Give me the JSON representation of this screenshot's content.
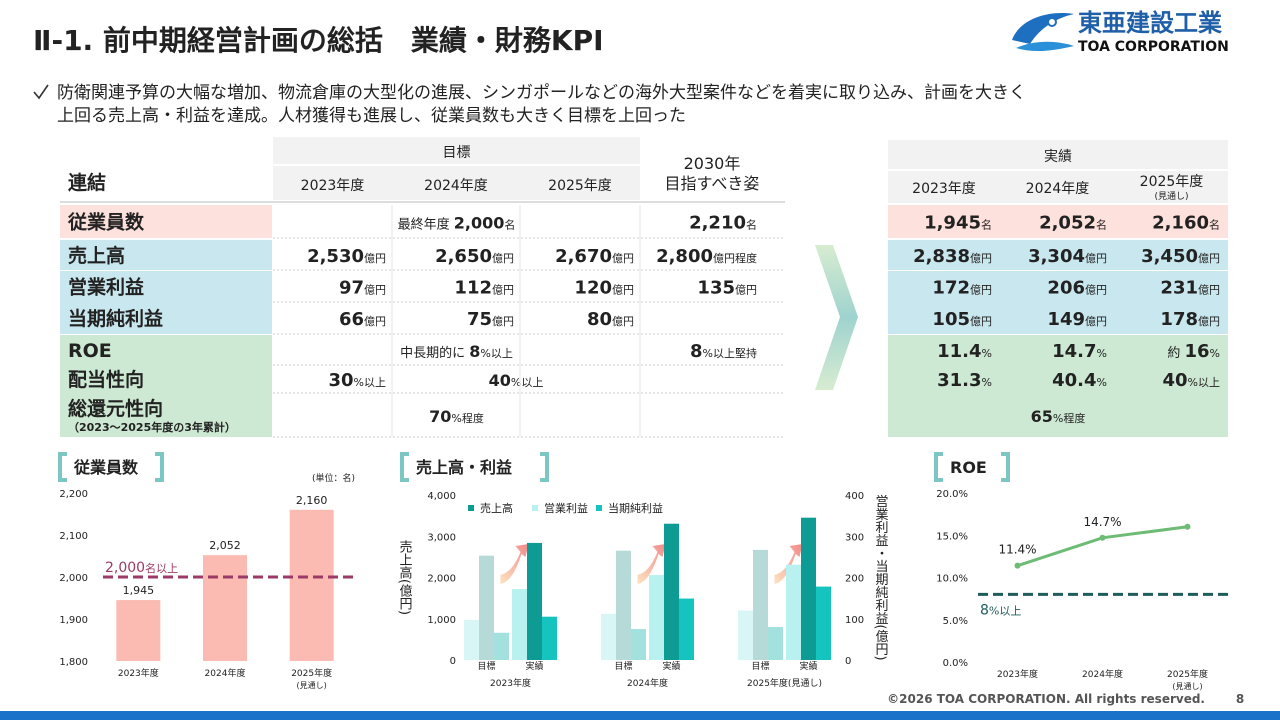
{
  "header": {
    "title": "Ⅱ-1. 前中期経営計画の総括　業績・財務KPI",
    "logo_ja": "東亜建設工業",
    "logo_en": "TOA CORPORATION"
  },
  "summary": {
    "lines": [
      "防衛関連予算の大幅な増加、物流倉庫の大型化の進展、シンガポールなどの海外大型案件などを着実に取り込み、計画を大きく",
      "上回る売上高・利益を達成。人材獲得も進展し、従業員数も大きく目標を上回った"
    ]
  },
  "table": {
    "corner": "連結",
    "target_header": "目標",
    "years": [
      "2023年度",
      "2024年度",
      "2025年度"
    ],
    "vision_header": [
      "2030年",
      "目指すべき姿"
    ],
    "actual_header": "実績",
    "actual_years": [
      "2023年度",
      "2024年度",
      "2025年度"
    ],
    "actual_year_note": "(見通し)",
    "rows": [
      {
        "label": "従業員数",
        "target": [
          {
            "span": 3,
            "prefix": "最終年度 ",
            "value": "2,000",
            "unit": "名"
          }
        ],
        "vision": {
          "value": "2,210",
          "unit": "名"
        },
        "actual": [
          {
            "value": "1,945",
            "unit": "名"
          },
          {
            "value": "2,052",
            "unit": "名"
          },
          {
            "value": "2,160",
            "unit": "名"
          }
        ]
      },
      {
        "label": "売上高",
        "target": [
          {
            "value": "2,530",
            "unit": "億円"
          },
          {
            "value": "2,650",
            "unit": "億円"
          },
          {
            "value": "2,670",
            "unit": "億円"
          }
        ],
        "vision": {
          "value": "2,800",
          "unit": "億円程度"
        },
        "actual": [
          {
            "value": "2,838",
            "unit": "億円"
          },
          {
            "value": "3,304",
            "unit": "億円"
          },
          {
            "value": "3,450",
            "unit": "億円"
          }
        ]
      },
      {
        "label": "営業利益",
        "target": [
          {
            "value": "97",
            "unit": "億円"
          },
          {
            "value": "112",
            "unit": "億円"
          },
          {
            "value": "120",
            "unit": "億円"
          }
        ],
        "vision": {
          "value": "135",
          "unit": "億円"
        },
        "actual": [
          {
            "value": "172",
            "unit": "億円"
          },
          {
            "value": "206",
            "unit": "億円"
          },
          {
            "value": "231",
            "unit": "億円"
          }
        ]
      },
      {
        "label": "当期純利益",
        "target": [
          {
            "value": "66",
            "unit": "億円"
          },
          {
            "value": "75",
            "unit": "億円"
          },
          {
            "value": "80",
            "unit": "億円"
          }
        ],
        "actual": [
          {
            "value": "105",
            "unit": "億円"
          },
          {
            "value": "149",
            "unit": "億円"
          },
          {
            "value": "178",
            "unit": "億円"
          }
        ]
      },
      {
        "label": "ROE",
        "target": [
          {
            "span": 3,
            "prefix": "中長期的に ",
            "value": "8",
            "unit": "%以上"
          }
        ],
        "vision": {
          "value": "8",
          "unit": "%以上堅持"
        },
        "actual": [
          {
            "value": "11.4",
            "unit": "%"
          },
          {
            "value": "14.7",
            "unit": "%"
          },
          {
            "prefix": "約 ",
            "value": "16",
            "unit": "%"
          }
        ]
      },
      {
        "label": "配当性向",
        "target": [
          {
            "value": "30",
            "unit": "%以上"
          },
          {
            "span": 2,
            "value": "40",
            "unit": "%以上"
          }
        ],
        "actual": [
          {
            "value": "31.3",
            "unit": "%"
          },
          {
            "value": "40.4",
            "unit": "%"
          },
          {
            "value": "40",
            "unit": "%以上"
          }
        ]
      },
      {
        "label": "総還元性向",
        "sublabel": "（2023～2025年度の3年累計）",
        "target": [
          {
            "span": 3,
            "value": "70",
            "unit": "%程度"
          }
        ],
        "actual": [
          {
            "span": 3,
            "value": "65",
            "unit": "%程度"
          }
        ]
      }
    ]
  },
  "charts": [
    {
      "type": "bar",
      "title": "従業員数",
      "unit_note": "(単位：名)",
      "categories": [
        "2023年度",
        "2024年度",
        "2025年度"
      ],
      "category_notes": [
        null,
        null,
        "(見通し)"
      ],
      "values": [
        1945,
        2052,
        2160
      ],
      "value_labels": [
        "1,945",
        "2,052",
        "2,160"
      ],
      "color": "#fbbab2",
      "ylim": [
        1800,
        2200
      ],
      "yticks": [
        {
          "value": 1800,
          "label": "1,800"
        },
        {
          "value": 1900,
          "label": "1,900"
        },
        {
          "value": 2000,
          "label": "2,000"
        },
        {
          "value": 2100,
          "label": "2,100"
        },
        {
          "value": 2200,
          "label": "2,200"
        }
      ],
      "reference": {
        "value": 2000,
        "label": "2,000",
        "unit": "名以上",
        "color": "#9b3a66"
      }
    },
    {
      "type": "grouped_bar",
      "title": "売上高・利益",
      "groups": [
        "2023年度",
        "2024年度",
        "2025年度(見通し)"
      ],
      "categories": [
        "目標",
        "実績",
        "目標",
        "実績",
        "目標",
        "実績"
      ],
      "series": [
        {
          "name": "売上高",
          "color": "#0e9b94",
          "target_color": "#b5dad8",
          "values": [
            2530,
            2838,
            2650,
            3304,
            2670,
            3450
          ]
        },
        {
          "name": "営業利益",
          "color": "#b9f1f1",
          "target_color": "#d9f6f6",
          "axis": "y2",
          "values": [
            97,
            172,
            112,
            206,
            120,
            231
          ]
        },
        {
          "name": "当期純利益",
          "color": "#16c4bf",
          "target_color": "#a3e1de",
          "axis": "y2",
          "values": [
            66,
            105,
            75,
            149,
            80,
            178
          ]
        }
      ],
      "ylabel": "売上高(億円)",
      "y2label": "営業利益・当期純利益(億円)",
      "ylim": [
        0,
        4000
      ],
      "yticks": [
        0,
        {
          "value": 1000,
          "label": "1,000"
        },
        {
          "value": 2000,
          "label": "2,000"
        },
        {
          "value": 3000,
          "label": "3,000"
        },
        {
          "value": 4000,
          "label": "4,000"
        }
      ],
      "y2lim": [
        0,
        400
      ],
      "y2ticks": [
        0,
        100,
        200,
        300,
        400
      ]
    },
    {
      "type": "line",
      "title": "ROE",
      "categories": [
        "2023年度",
        "2024年度",
        "2025年度"
      ],
      "category_notes": [
        null,
        null,
        "(見通し)"
      ],
      "values": [
        11.4,
        14.7,
        16.0
      ],
      "value_labels": [
        "11.4%",
        "14.7%",
        null
      ],
      "color": "#6dbb74",
      "ylim": [
        0,
        20
      ],
      "yticks": [
        {
          "value": 0,
          "label": "0.0%"
        },
        {
          "value": 5,
          "label": "5.0%"
        },
        {
          "value": 10,
          "label": "10.0%"
        },
        {
          "value": 15,
          "label": "15.0%"
        },
        {
          "value": 20,
          "label": "20.0%"
        }
      ],
      "reference": {
        "value": 8,
        "label": "8",
        "unit": "%以上",
        "color": "#1f5c5c"
      }
    }
  ],
  "footer": {
    "copyright": "©2026 TOA CORPORATION. All rights reserved.",
    "page": "8"
  }
}
